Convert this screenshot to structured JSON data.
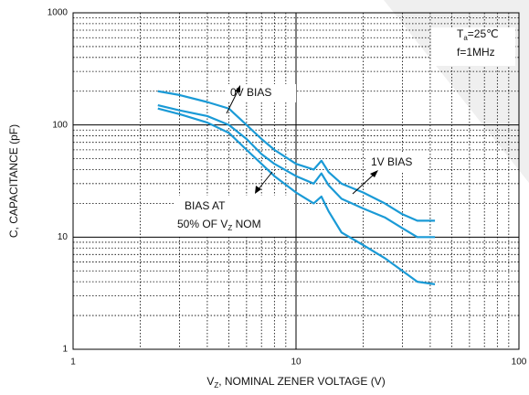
{
  "chart_data": {
    "type": "line",
    "x_label": {
      "main": "V",
      "sub": "Z",
      "rest": ", NOMINAL ZENER VOLTAGE (V)"
    },
    "y_label": "C, CAPACITANCE (pF)",
    "x": [
      2.4,
      3,
      4,
      5,
      6,
      7,
      8,
      10,
      12,
      13,
      14,
      16,
      20,
      25,
      30,
      35,
      42
    ],
    "series": [
      {
        "name": "0V BIAS",
        "color": "#1a9ad6",
        "values": [
          200,
          185,
          160,
          140,
          100,
          75,
          60,
          45,
          40,
          48,
          38,
          30,
          25,
          20,
          16,
          14,
          14
        ]
      },
      {
        "name": "1V BIAS",
        "color": "#1a9ad6",
        "values": [
          150,
          135,
          120,
          100,
          75,
          55,
          45,
          35,
          30,
          37,
          29,
          22,
          18,
          15,
          12,
          10,
          10
        ]
      },
      {
        "name": "BIAS AT 50% OF VZ NOM",
        "color": "#1a9ad6",
        "values": [
          140,
          125,
          105,
          85,
          60,
          45,
          35,
          25,
          20,
          23,
          17,
          11,
          8.5,
          6.5,
          5,
          4,
          3.8
        ]
      }
    ],
    "annotations": {
      "zero": "0V BIAS",
      "one": "1V BIAS",
      "half1": "BIAS AT",
      "half2a": "50% OF V",
      "half2b": "Z",
      "half2c": " NOM",
      "ta1": "T",
      "ta2": "a",
      "ta3": "=25℃",
      "freq": "f=1MHz"
    },
    "xlim": [
      1,
      100
    ],
    "xticks": [
      1,
      10,
      100
    ],
    "ylim": [
      1,
      1000
    ],
    "yticks": [
      1,
      10,
      100,
      1000
    ],
    "xscale": "log",
    "yscale": "log",
    "grid": true,
    "minor_grid": true
  }
}
